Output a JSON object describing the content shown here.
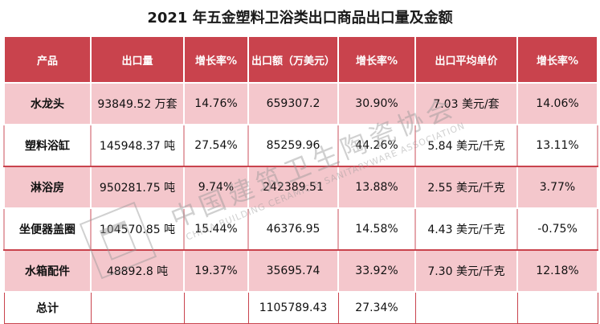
{
  "title": "2021 年五金塑料卫浴类出口商品出口量及金额",
  "headers": [
    "产品",
    "出口量",
    "增长率%",
    "出口额（万美元）",
    "增长率%",
    "出口平均单价",
    "增长率%"
  ],
  "rows": [
    {
      "product": "水龙头",
      "volume": "93849.52 万套",
      "volume_growth": "14.76%",
      "value": "659307.2",
      "value_growth": "30.90%",
      "unit_price": "7.03  美元/套",
      "price_growth": "14.06%"
    },
    {
      "product": "塑料浴缸",
      "volume": "145948.37 吨",
      "volume_growth": "27.54%",
      "value": "85259.96",
      "value_growth": "44.26%",
      "unit_price": "5.84  美元/千克",
      "price_growth": "13.11%"
    },
    {
      "product": "淋浴房",
      "volume": "950281.75 吨",
      "volume_growth": "9.74%",
      "value": "242389.51",
      "value_growth": "13.88%",
      "unit_price": "2.55  美元/千克",
      "price_growth": "3.77%"
    },
    {
      "product": "坐便器盖圈",
      "volume": "104570.85 吨",
      "volume_growth": "15.44%",
      "value": "46376.95",
      "value_growth": "14.58%",
      "unit_price": "4.43  美元/千克",
      "price_growth": "-0.75%"
    },
    {
      "product": "水箱配件",
      "volume": "48892.8 吨",
      "volume_growth": "19.37%",
      "value": "35695.74",
      "value_growth": "33.92%",
      "unit_price": "7.30  美元/千克",
      "price_growth": "12.18%"
    }
  ],
  "total": {
    "label": "总计",
    "volume": "",
    "volume_growth": "",
    "value": "1105789.43",
    "value_growth": "27.34%",
    "unit_price": "",
    "price_growth": ""
  },
  "watermark": {
    "cn": "中国建筑卫生陶瓷协会",
    "en": "CHINA BUILDING CERAMIC & SANITARYWARE ASSOCIATION"
  },
  "colors": {
    "header": "#c9434d",
    "band": "#f4c7cc"
  }
}
